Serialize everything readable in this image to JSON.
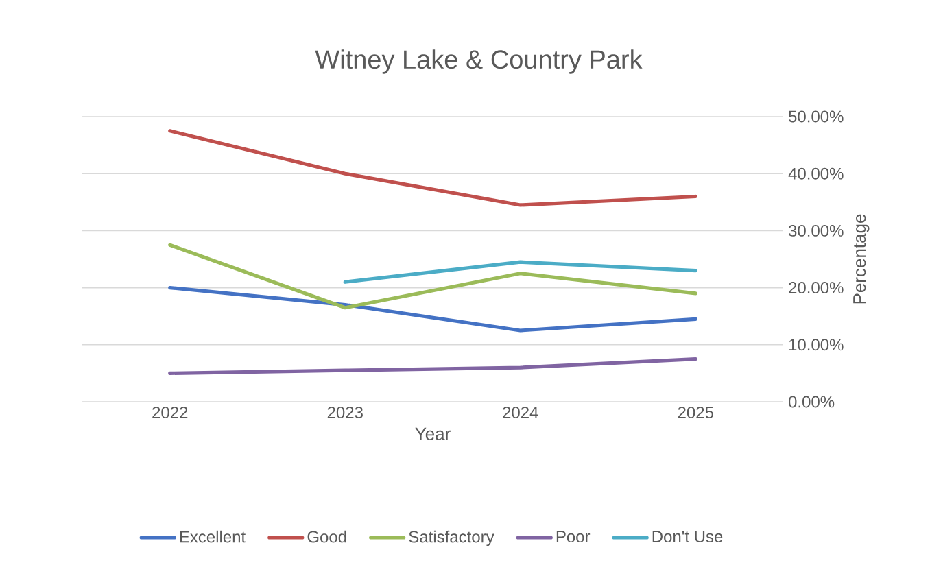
{
  "chart_data": {
    "type": "line",
    "title": "Witney Lake & Country Park",
    "xlabel": "Year",
    "ylabel": "Percentage",
    "categories": [
      "2022",
      "2023",
      "2024",
      "2025"
    ],
    "series": [
      {
        "name": "Excellent",
        "color": "#4472c4",
        "values": [
          20,
          17,
          12.5,
          14.5
        ]
      },
      {
        "name": "Good",
        "color": "#c0504d",
        "values": [
          47.5,
          40,
          34.5,
          36
        ]
      },
      {
        "name": "Satisfactory",
        "color": "#9bbb59",
        "values": [
          27.5,
          16.5,
          22.5,
          19
        ]
      },
      {
        "name": "Poor",
        "color": "#8064a2",
        "values": [
          5,
          5.5,
          6,
          7.5
        ]
      },
      {
        "name": "Don't Use",
        "color": "#4bacc6",
        "values": [
          null,
          21,
          24.5,
          23
        ]
      }
    ],
    "ylim": [
      0,
      50
    ],
    "yticks": [
      {
        "value": 0,
        "label": "0.00%"
      },
      {
        "value": 10,
        "label": "10.00%"
      },
      {
        "value": 20,
        "label": "20.00%"
      },
      {
        "value": 30,
        "label": "30.00%"
      },
      {
        "value": 40,
        "label": "40.00%"
      },
      {
        "value": 50,
        "label": "50.00%"
      }
    ],
    "grid": "y",
    "legend": "bottom",
    "marker": "none",
    "line_style": "solid"
  }
}
